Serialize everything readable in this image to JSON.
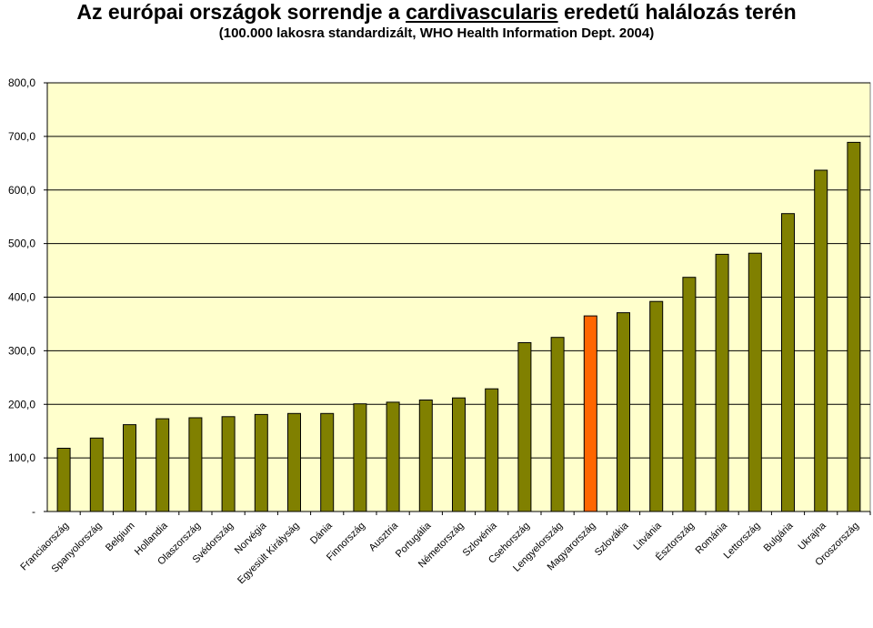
{
  "title": {
    "pre": "Az európai országok sorrendje a ",
    "underlined": "cardivascularis",
    "post": " eredetű halálozás terén"
  },
  "subtitle": "(100.000 lakosra standardizált, WHO Health Information Dept. 2004)",
  "chart_data": {
    "type": "bar",
    "title": "Az európai országok sorrendje a cardivascularis eredetű halálozás terén",
    "subtitle": "(100.000 lakosra standardizált, WHO Health Information Dept. 2004)",
    "ylim": [
      0,
      800
    ],
    "yticks": [
      "-",
      "100,0",
      "200,0",
      "300,0",
      "400,0",
      "500,0",
      "600,0",
      "700,0",
      "800,0"
    ],
    "grid": true,
    "colors": {
      "plot_bg": "#ffffcc",
      "bar": "#808000",
      "highlight": "#ff6600",
      "grid": "#000000"
    },
    "highlight_index": 16,
    "categories": [
      "Franciaország",
      "Spanyolország",
      "Belgium",
      "Hollandia",
      "Olaszország",
      "Svédország",
      "Norvégia",
      "Egyesült Királyság",
      "Dánia",
      "Finnország",
      "Ausztria",
      "Portugália",
      "Németország",
      "Szlovénia",
      "Csehország",
      "Lengyelország",
      "Magyarország",
      "Szlovákia",
      "Litvánia",
      "Észtország",
      "Románia",
      "Lettország",
      "Bulgária",
      "Ukrajna",
      "Oroszország"
    ],
    "values": [
      118,
      137,
      162,
      173,
      175,
      177,
      181,
      183,
      183,
      201,
      204,
      208,
      212,
      229,
      315,
      325,
      365,
      371,
      392,
      437,
      480,
      482,
      556,
      637,
      689
    ]
  }
}
